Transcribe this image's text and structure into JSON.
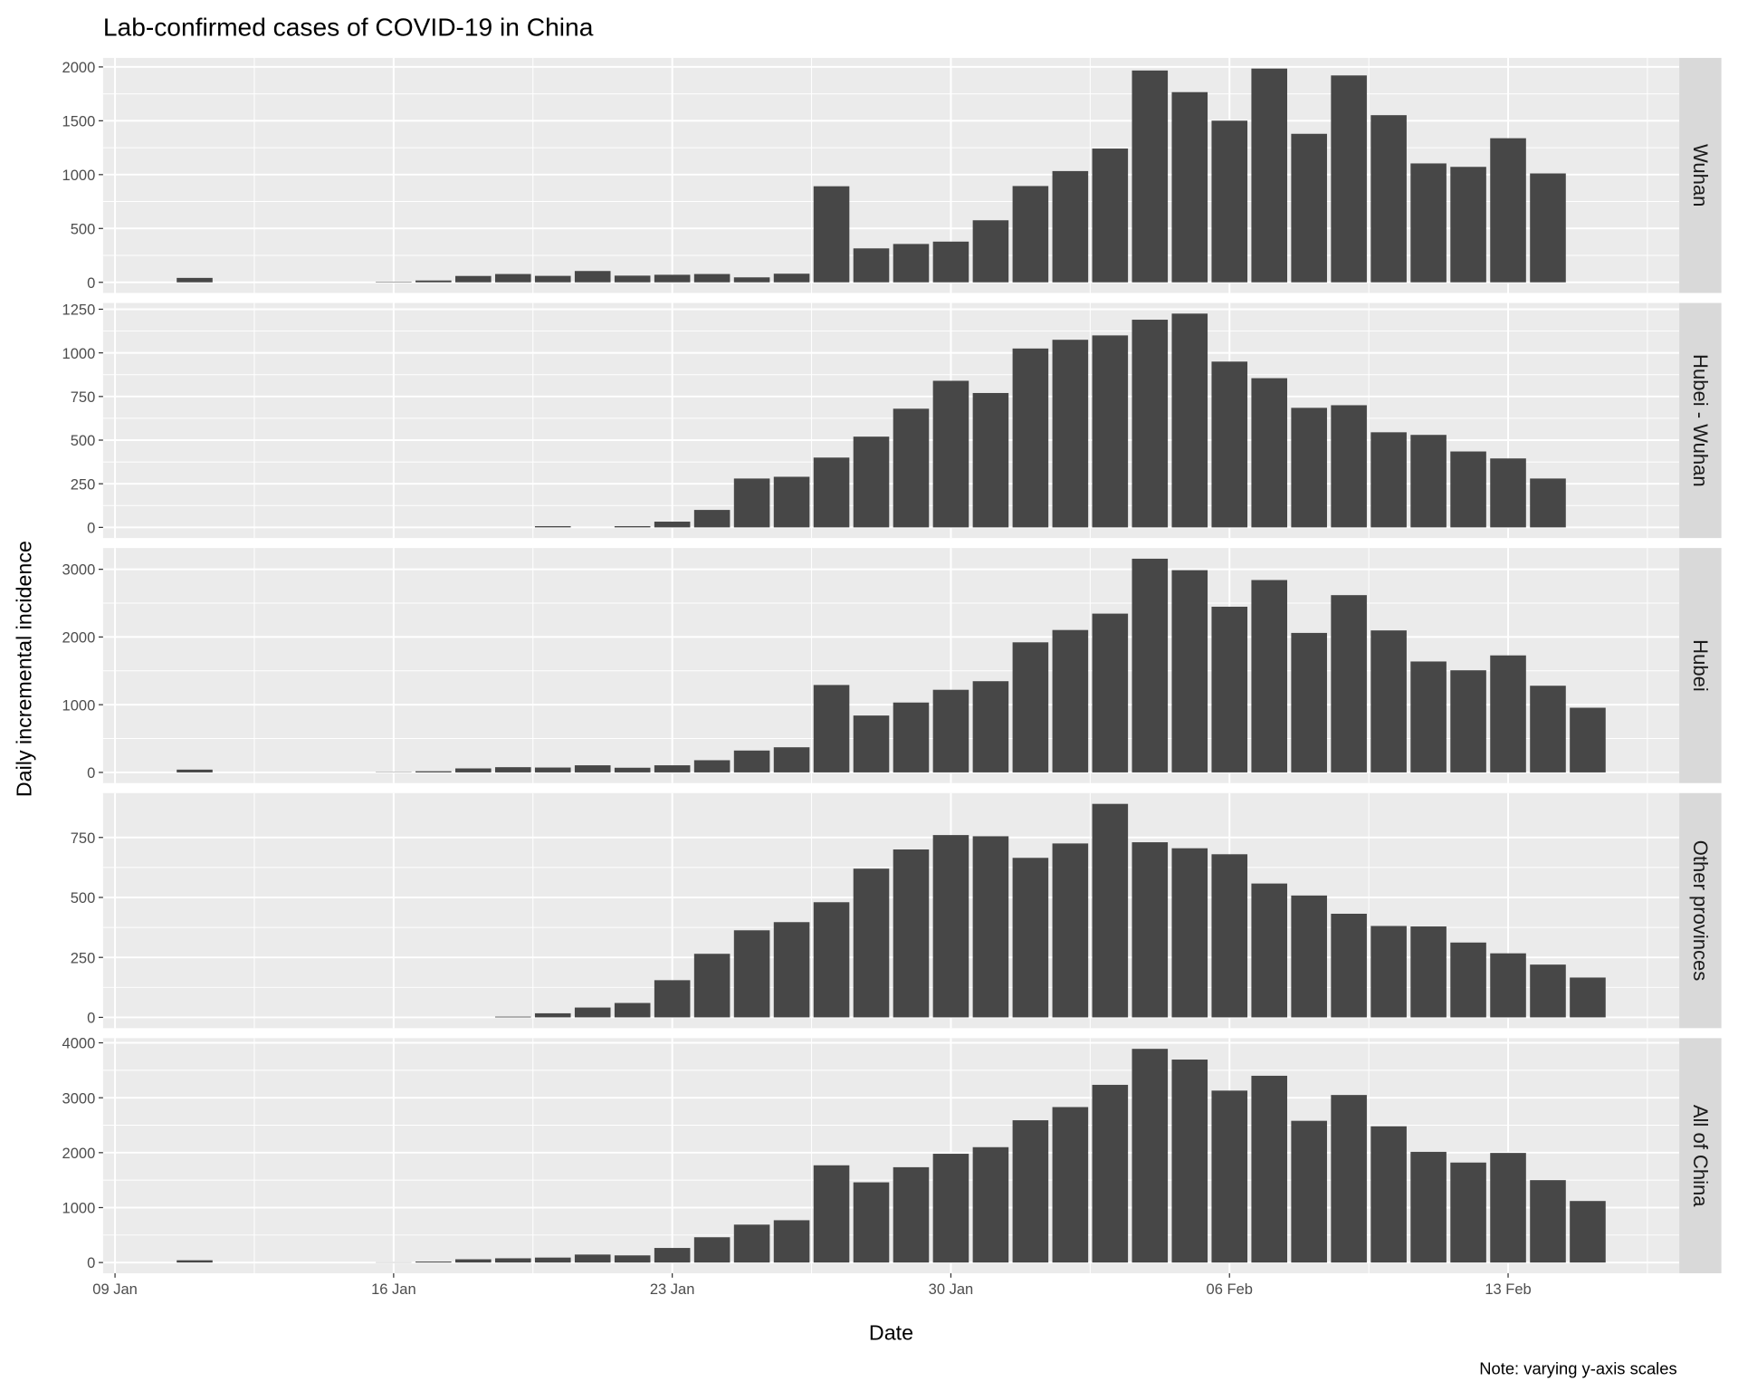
{
  "chart_data": {
    "type": "bar",
    "title": "Lab-confirmed cases of COVID-19 in China",
    "xlabel": "Date",
    "ylabel": "Daily incremental incidence",
    "note": "Note: varying y-axis scales",
    "color": "#474747",
    "grid": true,
    "x": [
      "11 Jan",
      "16 Jan",
      "17 Jan",
      "18 Jan",
      "19 Jan",
      "20 Jan",
      "21 Jan",
      "22 Jan",
      "23 Jan",
      "24 Jan",
      "25 Jan",
      "26 Jan",
      "27 Jan",
      "28 Jan",
      "29 Jan",
      "30 Jan",
      "31 Jan",
      "01 Feb",
      "02 Feb",
      "03 Feb",
      "04 Feb",
      "05 Feb",
      "06 Feb",
      "07 Feb",
      "08 Feb",
      "09 Feb",
      "10 Feb",
      "11 Feb",
      "12 Feb",
      "13 Feb",
      "14 Feb",
      "15 Feb"
    ],
    "xlim": [
      "09 Jan",
      "17 Feb"
    ],
    "xticks": [
      "09 Jan",
      "16 Jan",
      "23 Jan",
      "30 Jan",
      "06 Feb",
      "13 Feb"
    ],
    "series": [
      {
        "name": "Wuhan",
        "ylim": [
          -99,
          2084
        ],
        "yticks": [
          0,
          500,
          1000,
          1500,
          2000
        ],
        "values": [
          41,
          4,
          17,
          59,
          77,
          60,
          105,
          62,
          70,
          77,
          46,
          80,
          892,
          315,
          356,
          378,
          576,
          894,
          1033,
          1242,
          1967,
          1766,
          1501,
          1985,
          1379,
          1921,
          1552,
          1104,
          1072,
          1338,
          1011,
          null
        ]
      },
      {
        "name": "Hubei - Wuhan",
        "ylim": [
          -61,
          1286
        ],
        "yticks": [
          0,
          250,
          500,
          750,
          1000,
          1250
        ],
        "values": [
          null,
          null,
          null,
          null,
          null,
          7,
          null,
          7,
          33,
          100,
          280,
          290,
          400,
          520,
          680,
          840,
          770,
          1025,
          1075,
          1100,
          1190,
          1225,
          950,
          855,
          685,
          700,
          545,
          530,
          435,
          395,
          280,
          null
        ]
      },
      {
        "name": "Hubei",
        "ylim": [
          -158,
          3314
        ],
        "yticks": [
          0,
          1000,
          2000,
          3000
        ],
        "values": [
          41,
          4,
          17,
          59,
          77,
          72,
          105,
          69,
          105,
          180,
          323,
          371,
          1291,
          840,
          1032,
          1220,
          1347,
          1921,
          2103,
          2345,
          3156,
          2987,
          2447,
          2841,
          2060,
          2618,
          2097,
          1638,
          1508,
          1728,
          1280,
          955
        ]
      },
      {
        "name": "Other provinces",
        "ylim": [
          -45,
          935
        ],
        "yticks": [
          0,
          250,
          500,
          750
        ],
        "values": [
          null,
          null,
          null,
          null,
          3,
          17,
          41,
          60,
          155,
          265,
          363,
          397,
          480,
          620,
          700,
          760,
          755,
          665,
          725,
          890,
          730,
          705,
          680,
          558,
          508,
          432,
          381,
          379,
          312,
          267,
          220,
          166
        ]
      },
      {
        "name": "All of China",
        "ylim": [
          -195,
          4085
        ],
        "yticks": [
          0,
          1000,
          2000,
          3000,
          4000
        ],
        "values": [
          41,
          4,
          17,
          59,
          77,
          90,
          145,
          130,
          265,
          460,
          690,
          770,
          1770,
          1460,
          1735,
          1980,
          2100,
          2590,
          2830,
          3235,
          3890,
          3695,
          3130,
          3400,
          2580,
          3050,
          2480,
          2015,
          1820,
          1995,
          1500,
          1120
        ]
      }
    ]
  }
}
